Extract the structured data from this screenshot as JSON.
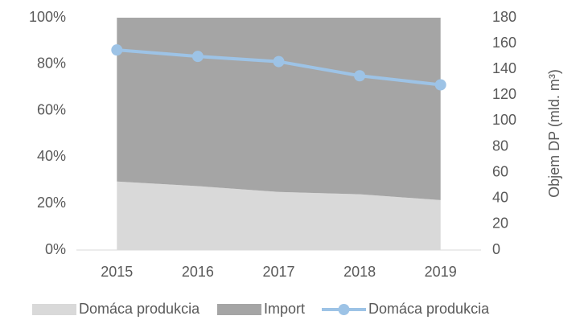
{
  "chart_data": {
    "type": "area",
    "categories": [
      "2015",
      "2016",
      "2017",
      "2018",
      "2019"
    ],
    "series": [
      {
        "name": "Domáca produkcia",
        "color": "#d9d9d9",
        "values": [
          29.5,
          27.5,
          25,
          24,
          21.5
        ]
      },
      {
        "name": "Import",
        "color": "#a5a5a5",
        "values": [
          70.5,
          72.5,
          75,
          76,
          78.5
        ]
      },
      {
        "name": "Domáca produkcia",
        "color": "#9dc3e6",
        "type": "line",
        "axis": "y2",
        "values": [
          155,
          150,
          146,
          135,
          128
        ]
      }
    ],
    "ylim": [
      0,
      100
    ],
    "yticks": [
      {
        "value": 0,
        "label": "0%"
      },
      {
        "value": 20,
        "label": "20%"
      },
      {
        "value": 40,
        "label": "40%"
      },
      {
        "value": 60,
        "label": "60%"
      },
      {
        "value": 80,
        "label": "80%"
      },
      {
        "value": 100,
        "label": "100%"
      }
    ],
    "y2lim": [
      0,
      180
    ],
    "y2ticks": [
      0,
      20,
      40,
      60,
      80,
      100,
      120,
      140,
      160,
      180
    ],
    "y2label": "Objem DP (mld. m³)",
    "legend": "bottom"
  }
}
